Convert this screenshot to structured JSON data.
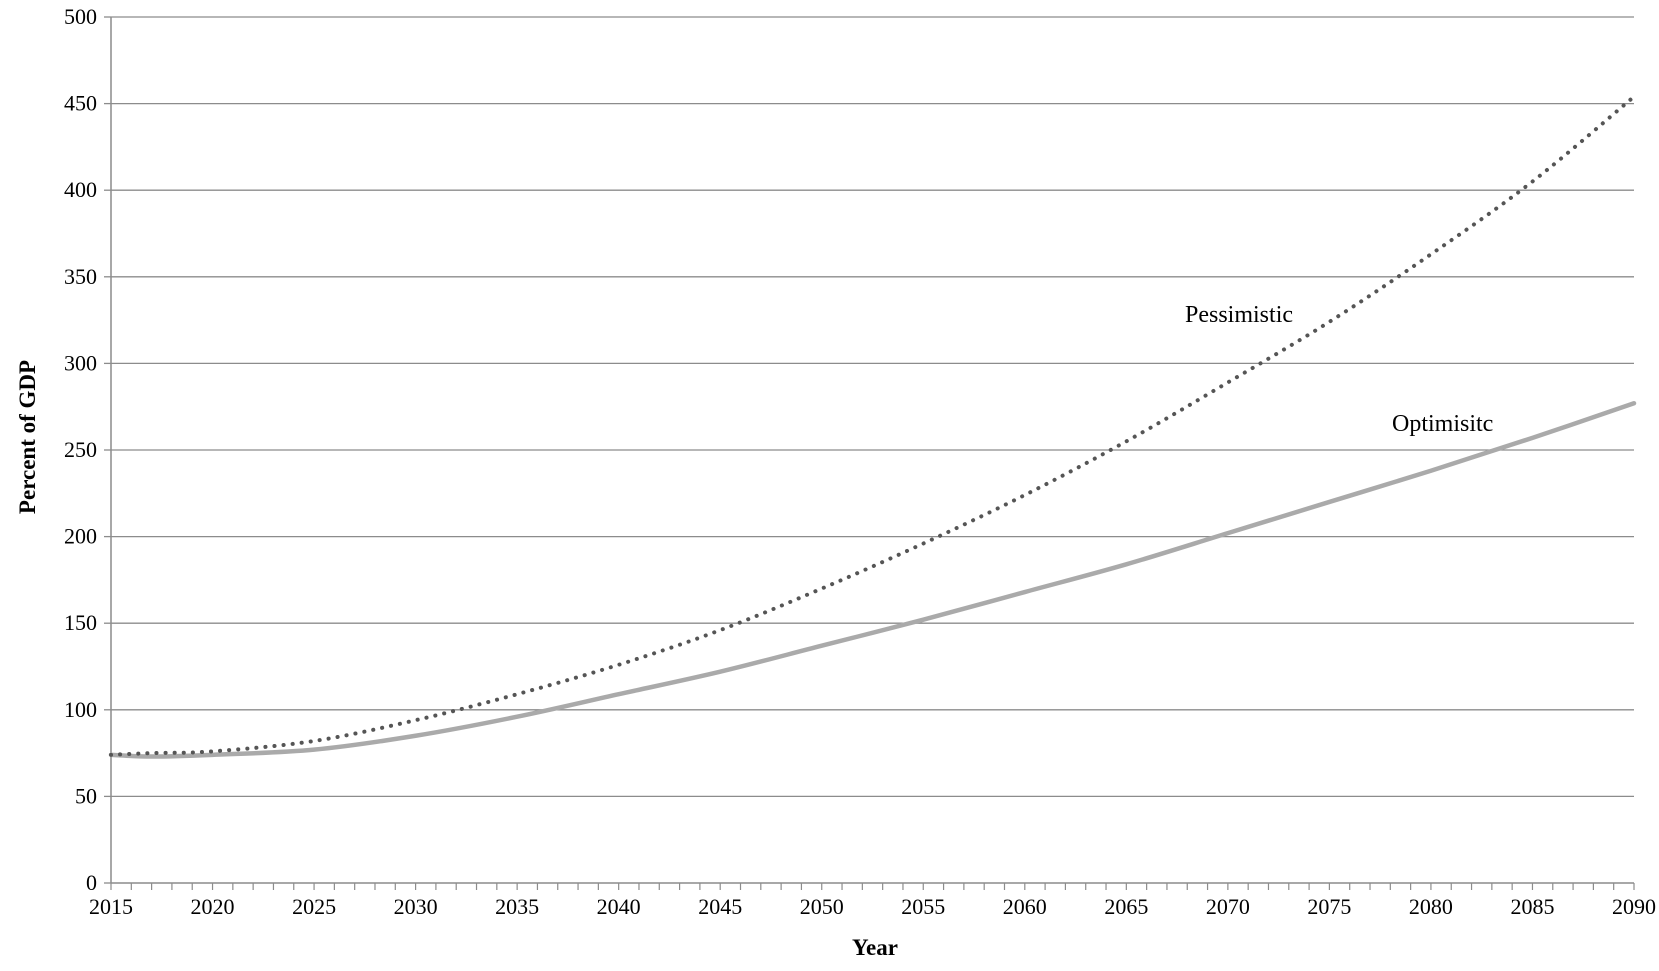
{
  "chart_data": {
    "type": "line",
    "title": "",
    "xlabel": "Year",
    "ylabel": "Percent of GDP",
    "xlim": [
      2015,
      2090
    ],
    "ylim": [
      0,
      500
    ],
    "x_ticks": [
      "2015",
      "2020",
      "2025",
      "2030",
      "2035",
      "2040",
      "2045",
      "2050",
      "2055",
      "2060",
      "2065",
      "2070",
      "2075",
      "2080",
      "2085",
      "2090"
    ],
    "y_ticks": [
      "0",
      "50",
      "100",
      "150",
      "200",
      "250",
      "300",
      "350",
      "400",
      "450",
      "500"
    ],
    "grid": "horizontal",
    "legend": "none",
    "x": [
      2015,
      2017,
      2020,
      2025,
      2030,
      2035,
      2040,
      2045,
      2050,
      2055,
      2060,
      2065,
      2070,
      2075,
      2080,
      2085,
      2090
    ],
    "series": [
      {
        "name": "Pessimistic",
        "style": "dotted",
        "color": "#555555",
        "values": [
          74,
          75,
          76,
          82,
          94,
          109,
          126,
          146,
          170,
          196,
          224,
          255,
          289,
          324,
          363,
          405,
          454
        ]
      },
      {
        "name": "Optimisitc",
        "style": "solid",
        "color": "#aaaaaa",
        "values": [
          74,
          73,
          74,
          77,
          85,
          96,
          109,
          122,
          137,
          152,
          168,
          184,
          202,
          220,
          238,
          257,
          277
        ]
      }
    ],
    "annotations": [
      "Pessimistic",
      "Optimisitc"
    ]
  }
}
